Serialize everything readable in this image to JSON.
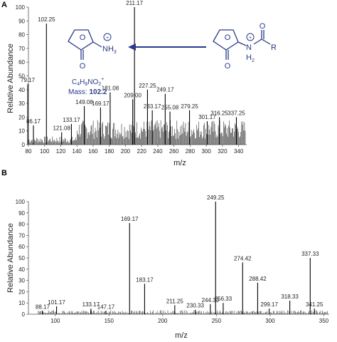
{
  "chart_data": [
    {
      "panel": "A",
      "type": "line",
      "xlabel": "m/z",
      "ylabel": "Relative Abundance",
      "xlim": [
        80,
        350
      ],
      "ylim": [
        0,
        100
      ],
      "xticks": [
        80,
        100,
        120,
        140,
        160,
        180,
        200,
        220,
        240,
        260,
        280,
        300,
        320,
        340
      ],
      "yticks": [
        0,
        10,
        20,
        30,
        40,
        50,
        60,
        70,
        80,
        90,
        100
      ],
      "peaks": [
        {
          "x": 79.17,
          "y": 44,
          "label": "79.17"
        },
        {
          "x": 86.17,
          "y": 14,
          "label": "86.17"
        },
        {
          "x": 102.25,
          "y": 88,
          "label": "102.25"
        },
        {
          "x": 121.08,
          "y": 9,
          "label": "121.08"
        },
        {
          "x": 133.17,
          "y": 15,
          "label": "133.17"
        },
        {
          "x": 149.08,
          "y": 28,
          "label": "149.08"
        },
        {
          "x": 169.17,
          "y": 27,
          "label": "169.17"
        },
        {
          "x": 181.08,
          "y": 38,
          "label": "181.08"
        },
        {
          "x": 209.0,
          "y": 33,
          "label": "209.00"
        },
        {
          "x": 211.17,
          "y": 100,
          "label": "211.17"
        },
        {
          "x": 227.25,
          "y": 40,
          "label": "227.25"
        },
        {
          "x": 233.17,
          "y": 25,
          "label": "233.17"
        },
        {
          "x": 249.17,
          "y": 37,
          "label": "249.17"
        },
        {
          "x": 255.08,
          "y": 24,
          "label": "255.08"
        },
        {
          "x": 279.25,
          "y": 25,
          "label": "279.25"
        },
        {
          "x": 301.17,
          "y": 17,
          "label": "301.17"
        },
        {
          "x": 316.25,
          "y": 20,
          "label": "316.25"
        },
        {
          "x": 337.25,
          "y": 20,
          "label": "337.25"
        }
      ],
      "annotation": {
        "formula_base": "C",
        "formula_parts": [
          [
            "C",
            ""
          ],
          [
            "4",
            "sub"
          ],
          [
            "H",
            ""
          ],
          [
            "8",
            "sub"
          ],
          [
            "NO",
            ""
          ],
          [
            "2",
            "sub"
          ],
          [
            "+",
            "sup"
          ]
        ],
        "mass_label": "Mass: ",
        "mass_value": "102.2",
        "left_group": "NH",
        "left_group_sub": "3",
        "charge": "+",
        "carbonyl_o": "O",
        "ring_o": "O",
        "right_n": "N",
        "right_h": "H",
        "right_h_sub": "2",
        "right_r": "R",
        "right_o_top": "O",
        "right_o_bottom": "O"
      }
    },
    {
      "panel": "B",
      "type": "line",
      "xlabel": "m/z",
      "ylabel": "Relative Abundance",
      "xlim": [
        75,
        355
      ],
      "ylim": [
        0,
        100
      ],
      "xticks": [
        100,
        150,
        200,
        250,
        300,
        350
      ],
      "yticks": [
        0,
        10,
        20,
        30,
        40,
        50,
        60,
        70,
        80,
        90,
        100
      ],
      "peaks": [
        {
          "x": 88.17,
          "y": 3,
          "label": "88.17"
        },
        {
          "x": 101.17,
          "y": 7,
          "label": "101.17"
        },
        {
          "x": 133.17,
          "y": 5,
          "label": "133.17"
        },
        {
          "x": 147.17,
          "y": 3,
          "label": "147.17"
        },
        {
          "x": 169.17,
          "y": 81,
          "label": "169.17"
        },
        {
          "x": 183.17,
          "y": 27,
          "label": "183.17"
        },
        {
          "x": 211.25,
          "y": 8,
          "label": "211.25"
        },
        {
          "x": 230.33,
          "y": 4,
          "label": "230.33"
        },
        {
          "x": 244.33,
          "y": 9,
          "label": "244.33"
        },
        {
          "x": 249.25,
          "y": 100,
          "label": "249.25"
        },
        {
          "x": 256.33,
          "y": 10,
          "label": "256.33"
        },
        {
          "x": 274.42,
          "y": 46,
          "label": "274.42"
        },
        {
          "x": 288.42,
          "y": 28,
          "label": "288.42"
        },
        {
          "x": 299.17,
          "y": 5,
          "label": "299.17"
        },
        {
          "x": 318.33,
          "y": 12,
          "label": "318.33"
        },
        {
          "x": 337.33,
          "y": 50,
          "label": "337.33"
        },
        {
          "x": 341.25,
          "y": 5,
          "label": "341.25"
        }
      ]
    }
  ]
}
